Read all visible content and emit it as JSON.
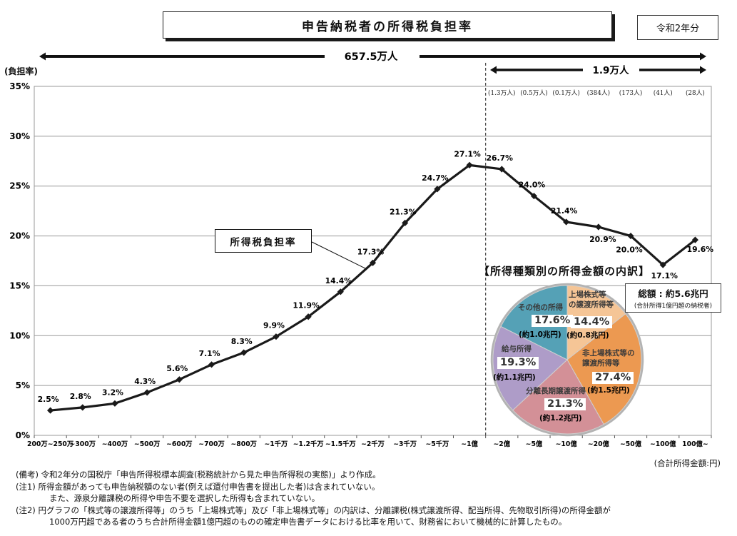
{
  "header": {
    "title": "申告納税者の所得税負担率",
    "year_badge": "令和2年分"
  },
  "annotations": {
    "left_population": "657.5万人",
    "right_population": "1.9万人",
    "series_callout": "所得税負担率",
    "x_axis_unit": "(合計所得金額:円)"
  },
  "chart_data": [
    {
      "type": "line",
      "title": "申告納税者の所得税負担率",
      "ylabel": "(負担率)",
      "ylim": [
        0,
        35
      ],
      "ytick_step": 5,
      "ytick_suffix": "%",
      "grid": true,
      "categories": [
        "200万~250万",
        "~300万",
        "~400万",
        "~500万",
        "~600万",
        "~700万",
        "~800万",
        "~1千万",
        "~1.2千万",
        "~1.5千万",
        "~2千万",
        "~3千万",
        "~5千万",
        "~1億",
        "~2億",
        "~5億",
        "~10億",
        "~20億",
        "~50億",
        "~100億",
        "100億~"
      ],
      "values": [
        2.5,
        2.8,
        3.2,
        4.3,
        5.6,
        7.1,
        8.3,
        9.9,
        11.9,
        14.4,
        17.3,
        21.3,
        24.7,
        27.1,
        26.7,
        24.0,
        21.4,
        20.9,
        20.0,
        17.1,
        19.6
      ],
      "counts_start_index": 14,
      "counts": [
        "(1.3万人)",
        "(0.5万人)",
        "(0.1万人)",
        "(384人)",
        "(173人)",
        "(41人)",
        "(28人)"
      ],
      "divider_after_index": 13,
      "series_name": "所得税負担率",
      "line_color": "#1a1a1a"
    },
    {
      "type": "pie",
      "title": "【所得種類別の所得金額の内訳】",
      "total_label": "総額 : 約5.6兆円",
      "total_sub": "(合計所得1億円超の納税者)",
      "slices": [
        {
          "name": "上場株式等\nの譲渡所得等",
          "pct": 14.4,
          "amount": "(約0.8兆円)",
          "color": "#F5C596"
        },
        {
          "name": "非上場株式等の\n譲渡所得等",
          "pct": 27.4,
          "amount": "(約1.5兆円)",
          "color": "#EC9951"
        },
        {
          "name": "分離長期譲渡所得",
          "pct": 21.3,
          "amount": "(約1.2兆円)",
          "color": "#D39097"
        },
        {
          "name": "給与所得",
          "pct": 19.3,
          "amount": "(約1.1兆円)",
          "color": "#AE9CC8"
        },
        {
          "name": "その他の所得",
          "pct": 17.6,
          "amount": "(約1.0兆円)",
          "color": "#55A1B6"
        }
      ]
    }
  ],
  "notes": [
    "(備考) 令和2年分の国税庁「申告所得税標本調査(税務統計から見た申告所得税の実態)」より作成。",
    "(注1) 所得金額があっても申告納税額のない者(例えば還付申告書を提出した者)は含まれていない。",
    "また、源泉分離課税の所得や申告不要を選択した所得も含まれていない。",
    "(注2) 円グラフの「株式等の譲渡所得等」のうち「上場株式等」及び「非上場株式等」の内訳は、分離課税(株式譲渡所得、配当所得、先物取引所得)の所得金額が",
    "1000万円超である者のうち合計所得金額1億円超のものの確定申告書データにおける比率を用いて、財務省において機械的に計算したもの。"
  ]
}
